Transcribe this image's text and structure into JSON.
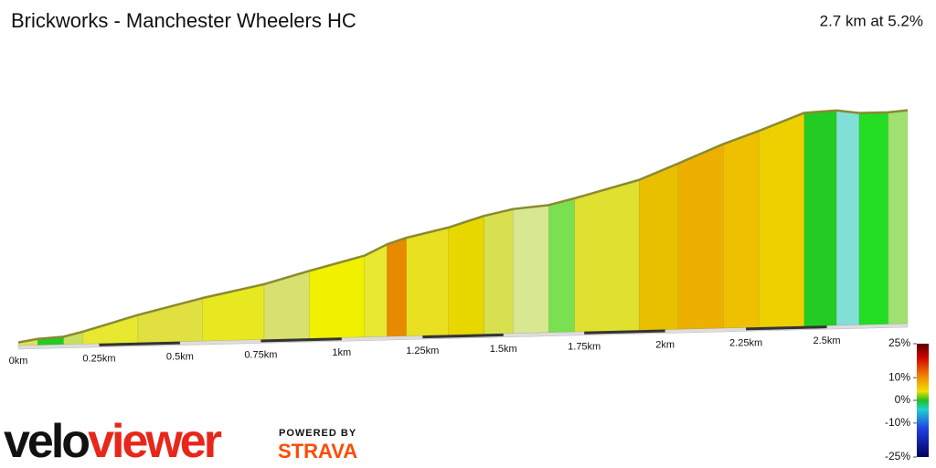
{
  "chart_data": {
    "type": "area",
    "title": "Brickworks - Manchester Wheelers HC",
    "subtitle": "2.7 km at 5.2%",
    "x": [
      0,
      0.06,
      0.14,
      0.2,
      0.37,
      0.57,
      0.76,
      0.9,
      1.07,
      1.14,
      1.2,
      1.33,
      1.44,
      1.53,
      1.64,
      1.72,
      1.92,
      2.04,
      2.18,
      2.29,
      2.43,
      2.53,
      2.6,
      2.69,
      2.75
    ],
    "series": [
      {
        "values": [
          2,
          4,
          5,
          8,
          18,
          28,
          36,
          44,
          53,
          60,
          64,
          70,
          77,
          81,
          83,
          87,
          98,
          108,
          120,
          128,
          139,
          140,
          138,
          138,
          139
        ],
        "segment_colors": [
          "#e0e060",
          "#22cc22",
          "#c8e060",
          "#e8e830",
          "#e0e040",
          "#e8e820",
          "#d8e070",
          "#f0f000",
          "#e8e830",
          "#e88a00",
          "#e8e020",
          "#e8d800",
          "#d8e050",
          "#d8e890",
          "#7ae050",
          "#e0e030",
          "#e8c000",
          "#eeb000",
          "#eec000",
          "#eed000",
          "#22cc22",
          "#80e0d8",
          "#22dd22",
          "#a0e070"
        ]
      }
    ],
    "xlim": [
      0,
      2.75
    ],
    "ylim": [
      0,
      140
    ],
    "xticks": [
      {
        "value": 0,
        "label": "0km"
      },
      {
        "value": 0.25,
        "label": "0.25km"
      },
      {
        "value": 0.5,
        "label": "0.5km"
      },
      {
        "value": 0.75,
        "label": "0.75km"
      },
      {
        "value": 1,
        "label": "1km"
      },
      {
        "value": 1.25,
        "label": "1.25km"
      },
      {
        "value": 1.5,
        "label": "1.5km"
      },
      {
        "value": 1.75,
        "label": "1.75km"
      },
      {
        "value": 2,
        "label": "2km"
      },
      {
        "value": 2.25,
        "label": "2.25km"
      },
      {
        "value": 2.5,
        "label": "2.5km"
      }
    ],
    "gradient_legend": {
      "lim": [
        -25,
        25
      ],
      "ticks": [
        {
          "value": 25,
          "label": "25%"
        },
        {
          "value": 10,
          "label": "10%"
        },
        {
          "value": 0,
          "label": "0%"
        },
        {
          "value": -10,
          "label": "-10%"
        },
        {
          "value": -25,
          "label": "-25%"
        }
      ]
    }
  },
  "branding": {
    "brand_a": "velo",
    "brand_b": "viewer",
    "powered": "POWERED BY",
    "partner": "STRAVA"
  }
}
